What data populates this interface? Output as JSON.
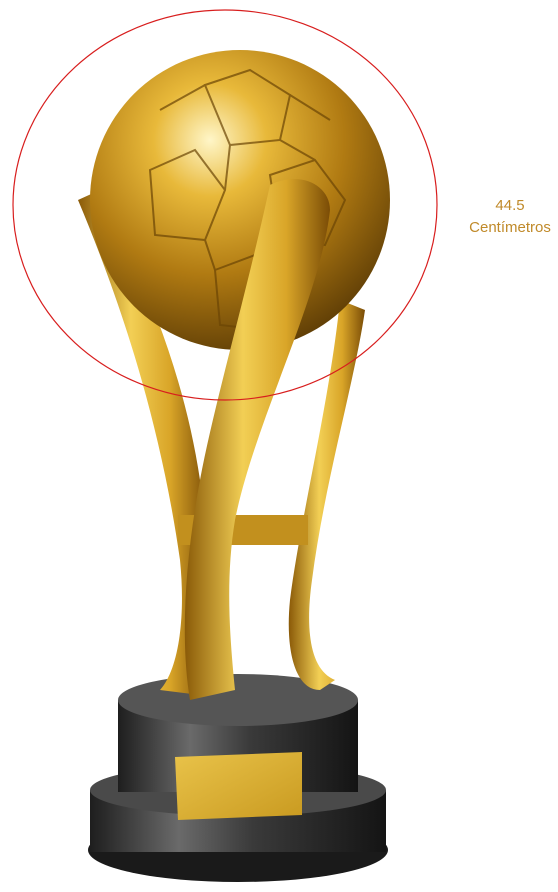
{
  "annotation": {
    "value": "44.5",
    "unit": "Centímetros"
  }
}
